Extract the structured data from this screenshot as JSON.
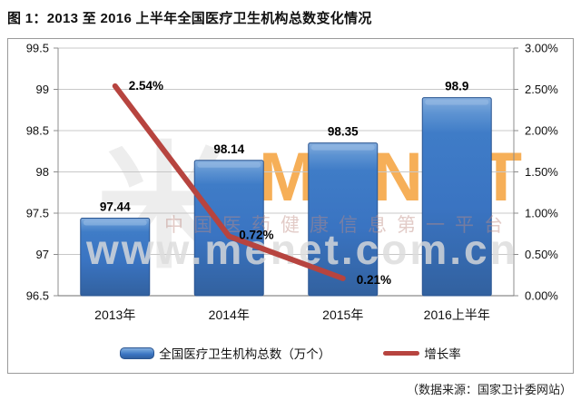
{
  "title": "图 1：2013 至 2016 上半年全国医疗卫生机构总数变化情况",
  "source": "（数据来源：国家卫计委网站）",
  "watermark": {
    "logo_glyph": "米",
    "brand": "MENET",
    "slogan": "中国医药健康信息第一平台",
    "url": "www.menet.com.cn",
    "brand_color": "#f5a23c"
  },
  "chart_data": {
    "type": "combo-bar-line",
    "categories": [
      "2013年",
      "2014年",
      "2015年",
      "2016上半年"
    ],
    "series": [
      {
        "name": "全国医疗卫生机构总数（万个）",
        "type": "bar",
        "axis": "left",
        "values": [
          97.44,
          98.14,
          98.35,
          98.9
        ],
        "labels": [
          "97.44",
          "98.14",
          "98.35",
          "98.9"
        ],
        "color": "#3a74c2"
      },
      {
        "name": "增长率",
        "type": "line",
        "axis": "right",
        "values": [
          2.54,
          0.72,
          0.21,
          null
        ],
        "labels": [
          "2.54%",
          "0.72%",
          "0.21%"
        ],
        "color": "#b7443f"
      }
    ],
    "left_axis": {
      "min": 96.5,
      "max": 99.5,
      "ticks": [
        "99.5",
        "99",
        "98.5",
        "98",
        "97.5",
        "97",
        "96.5"
      ]
    },
    "right_axis": {
      "min": 0.0,
      "max": 3.0,
      "ticks": [
        "3.00%",
        "2.50%",
        "2.00%",
        "1.50%",
        "1.00%",
        "0.50%",
        "0.00%"
      ]
    },
    "grid": true,
    "legend_position": "bottom-inside"
  }
}
